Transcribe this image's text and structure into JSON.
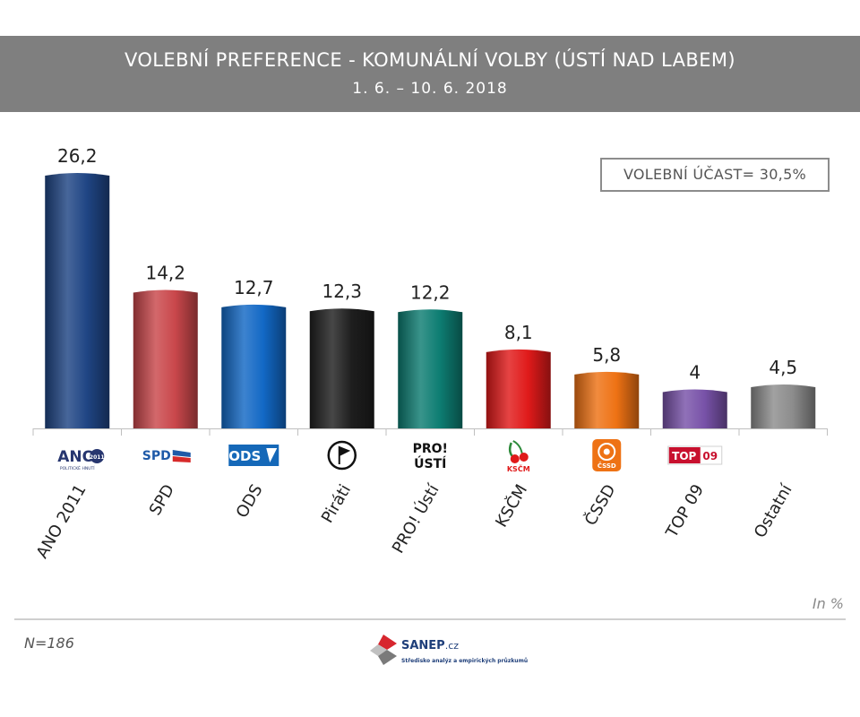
{
  "header": {
    "title": "VOLEBNÍ PREFERENCE - KOMUNÁLNÍ VOLBY (ÚSTÍ NAD LABEM)",
    "subtitle": "1. 6. – 10. 6. 2018"
  },
  "turnout_label": "VOLEBNÍ ÚČAST= 30,5%",
  "unit_label": "In %",
  "sample_label": "N=186",
  "brand": {
    "name": "SANEP",
    "domain_suffix": ".cz",
    "tagline": "Středisko analýz a empirických průzkumů"
  },
  "party_logos": [
    "ANO",
    "SPD",
    "ODS",
    "Piráti",
    "PRO! ÚSTÍ",
    "KSČM",
    "ČSSD",
    "TOP 09"
  ],
  "logo_text": {
    "ano": "ANO",
    "ano_badge": "2011",
    "ano_sub": "POLITICKÉ HNUTÍ",
    "spd": "SPD",
    "ods": "ODS",
    "pro_line1": "PRO!",
    "pro_line2": "ÚSTÍ",
    "kscm": "KSČM",
    "cssd": "ČSSD",
    "top": "TOP",
    "top_num": "09"
  },
  "chart_data": {
    "type": "bar",
    "title": "VOLEBNÍ PREFERENCE - KOMUNÁLNÍ VOLBY (ÚSTÍ NAD LABEM)",
    "categories": [
      "ANO 2011",
      "SPD",
      "ODS",
      "Piráti",
      "PRO! Ústí",
      "KSČM",
      "ČSSD",
      "TOP 09",
      "Ostatní"
    ],
    "values": [
      26.2,
      14.2,
      12.7,
      12.3,
      12.2,
      8.1,
      5.8,
      4,
      4.5
    ],
    "value_labels": [
      "26,2",
      "14,2",
      "12,7",
      "12,3",
      "12,2",
      "8,1",
      "5,8",
      "4",
      "4,5"
    ],
    "colors": [
      "#1f4584",
      "#c9474b",
      "#1268c5",
      "#1e1e1e",
      "#0d7d72",
      "#e01a1a",
      "#ee7214",
      "#7852a8",
      "#8c8c8c"
    ],
    "ylim": [
      0,
      27.5
    ],
    "grid": false,
    "legend": "none"
  }
}
